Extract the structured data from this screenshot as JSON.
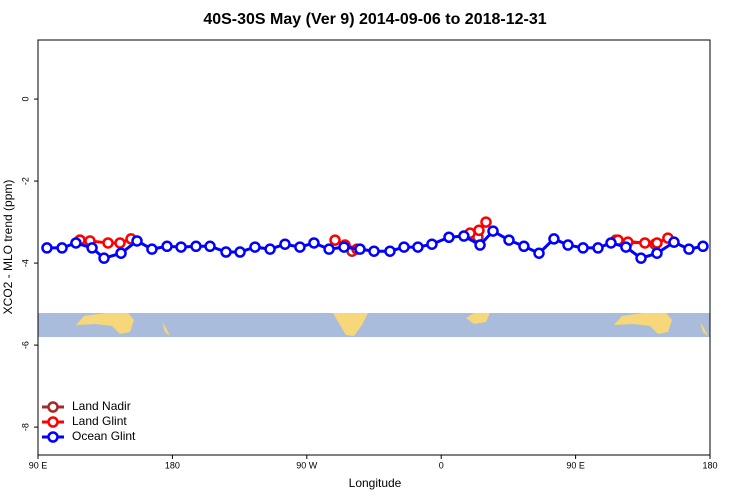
{
  "chart_data": {
    "type": "line",
    "title": "40S-30S May (Ver 9)   2014-09-06 to 2018-12-31",
    "xlabel": "Longitude",
    "ylabel": "XCO2 - MLO trend (ppm)",
    "xlim": [
      90,
      540
    ],
    "ylim": [
      -8.68,
      1.44
    ],
    "xticks": [
      {
        "value": 90,
        "label": "90 E"
      },
      180,
      {
        "value": 270,
        "label": "90 W"
      },
      {
        "value": 360,
        "label": "0"
      },
      {
        "value": 450,
        "label": "90 E"
      },
      {
        "value": 540,
        "label": "180"
      }
    ],
    "yticks": [
      -8,
      -6,
      -4,
      -2,
      0
    ],
    "legend": "bottom-left",
    "series": [
      {
        "name": "Land Nadir",
        "color": "#a52a2a",
        "x": [
          118.1,
          200,
          300.3,
          340,
          381.3,
          384.6,
          430,
          477.0,
          503.1
        ],
        "values": [
          -3.44,
          null,
          -3.71,
          null,
          -3.34,
          -3.37,
          null,
          -3.44,
          -3.54
        ]
      },
      {
        "name": "Land Glint",
        "color": "#ff0000",
        "x": [
          118.1,
          124.8,
          136.9,
          144.9,
          152.3,
          220,
          288.9,
          295.6,
          303.6,
          340,
          379.3,
          385.3,
          390.0,
          430,
          478.4,
          485.0,
          496.4,
          504.5,
          511.8
        ],
        "values": [
          -3.44,
          -3.46,
          -3.51,
          -3.51,
          -3.41,
          null,
          -3.44,
          -3.56,
          -3.66,
          null,
          -3.27,
          -3.2,
          -3.0,
          null,
          -3.44,
          -3.49,
          -3.51,
          -3.51,
          -3.39
        ]
      },
      {
        "name": "Ocean Glint",
        "color": "#0000ff",
        "x": [
          96.0,
          106.1,
          115.4,
          126.2,
          134.2,
          145.6,
          156.3,
          166.3,
          176.4,
          185.8,
          195.8,
          205.2,
          215.9,
          225.3,
          235.3,
          245.4,
          255.4,
          265.4,
          274.8,
          284.9,
          294.9,
          305.6,
          315.0,
          325.7,
          335.1,
          344.4,
          353.8,
          365.2,
          375.2,
          386.0,
          394.7,
          405.4,
          415.4,
          425.5,
          435.5,
          444.9,
          455.0,
          465.0,
          473.7,
          483.7,
          493.8,
          504.5,
          515.9,
          525.9,
          535.3
        ],
        "values": [
          -3.63,
          -3.63,
          -3.51,
          -3.63,
          -3.88,
          -3.76,
          -3.46,
          -3.66,
          -3.59,
          -3.61,
          -3.59,
          -3.59,
          -3.73,
          -3.73,
          -3.61,
          -3.66,
          -3.54,
          -3.61,
          -3.51,
          -3.66,
          -3.61,
          -3.66,
          -3.71,
          -3.71,
          -3.61,
          -3.61,
          -3.54,
          -3.37,
          -3.34,
          -3.56,
          -3.22,
          -3.44,
          -3.59,
          -3.76,
          -3.41,
          -3.56,
          -3.63,
          -3.63,
          -3.51,
          -3.61,
          -3.88,
          -3.76,
          -3.49,
          -3.66,
          -3.59
        ]
      }
    ]
  }
}
